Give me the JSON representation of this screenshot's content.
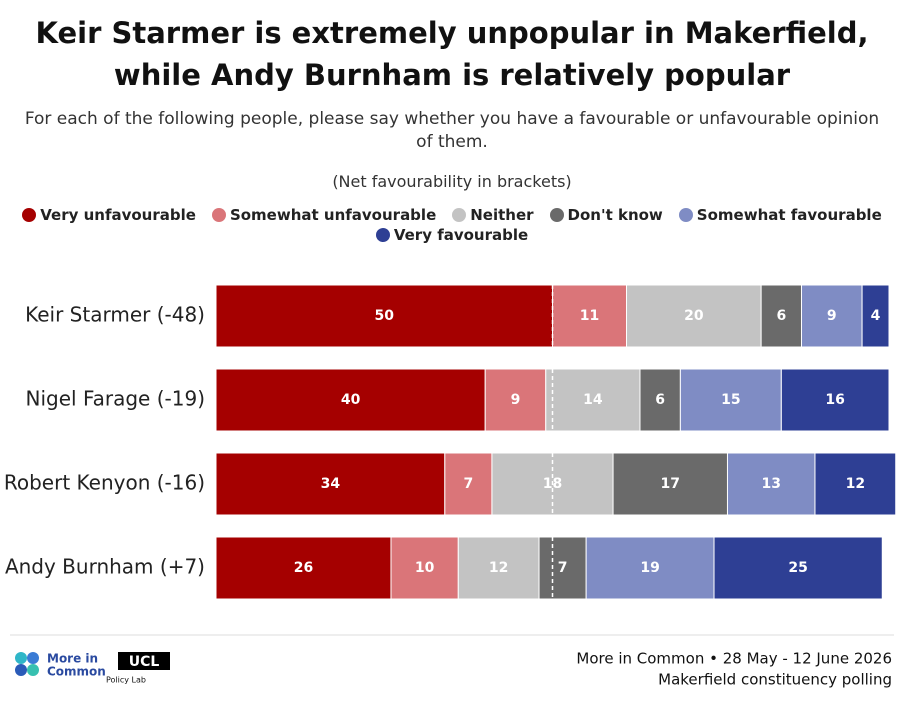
{
  "chart_data": {
    "type": "stacked-bar-horizontal",
    "title": "Keir Starmer is extremely unpopular in Makerfield, while Andy Burnham is relatively popular",
    "subtitle": "For each of the following people, please say whether you have a favourable or unfavourable opinion of them.",
    "note": "(Net favourability in brackets)",
    "categories": [
      "Keir Starmer (-48)",
      "Nigel Farage (-19)",
      "Robert Kenyon (-16)",
      "Andy Burnham (+7)"
    ],
    "xlim": [
      0,
      100
    ],
    "midline": 50,
    "series": [
      {
        "name": "Very unfavourable",
        "color": "#a50000",
        "values": [
          50,
          40,
          34,
          26
        ]
      },
      {
        "name": "Somewhat unfavourable",
        "color": "#da7579",
        "values": [
          11,
          9,
          7,
          10
        ]
      },
      {
        "name": "Neither",
        "color": "#c3c3c3",
        "values": [
          20,
          14,
          18,
          12
        ]
      },
      {
        "name": "Don't know",
        "color": "#6a6a6a",
        "values": [
          6,
          6,
          17,
          7
        ]
      },
      {
        "name": "Somewhat favourable",
        "color": "#7f8cc4",
        "values": [
          9,
          15,
          13,
          19
        ]
      },
      {
        "name": "Very favourable",
        "color": "#2e3f94",
        "values": [
          4,
          16,
          12,
          25
        ]
      }
    ]
  },
  "footer": {
    "logo_line1": "More in",
    "logo_line2": "Common",
    "ucl": "UCL",
    "ucl_sub": "Policy Lab",
    "source": "More in Common • 28 May - 12 June 2026",
    "source_note": "Makerfield constituency polling"
  }
}
